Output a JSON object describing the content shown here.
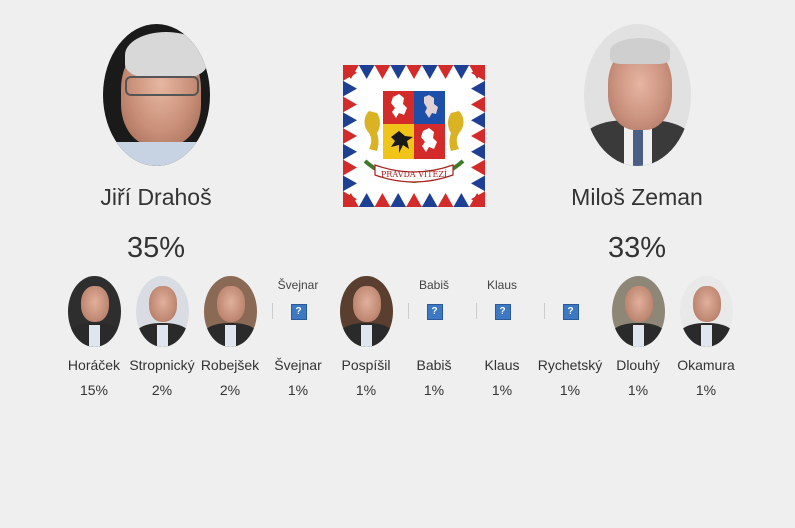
{
  "leaders": [
    {
      "name": "Jiří Drahoš",
      "percent": "35%",
      "photo": "drahos-portrait"
    },
    {
      "name": "Miloš Zeman",
      "percent": "33%",
      "photo": "zeman-portrait"
    }
  ],
  "emblem": {
    "name": "presidential-standard",
    "motto": "PRAVDA VÍTĚZÍ"
  },
  "candidates": [
    {
      "name": "Horáček",
      "percent": "15%",
      "image": "photo"
    },
    {
      "name": "Stropnický",
      "percent": "2%",
      "image": "photo"
    },
    {
      "name": "Robejšek",
      "percent": "2%",
      "image": "photo"
    },
    {
      "name": "Švejnar",
      "percent": "1%",
      "image": "broken",
      "alt": "Švejnar"
    },
    {
      "name": "Pospíšil",
      "percent": "1%",
      "image": "photo"
    },
    {
      "name": "Babiš",
      "percent": "1%",
      "image": "broken",
      "alt": "Babiš"
    },
    {
      "name": "Klaus",
      "percent": "1%",
      "image": "broken",
      "alt": "Klaus"
    },
    {
      "name": "Rychetský",
      "percent": "1%",
      "image": "broken",
      "alt": ""
    },
    {
      "name": "Dlouhý",
      "percent": "1%",
      "image": "photo"
    },
    {
      "name": "Okamura",
      "percent": "1%",
      "image": "photo"
    }
  ]
}
